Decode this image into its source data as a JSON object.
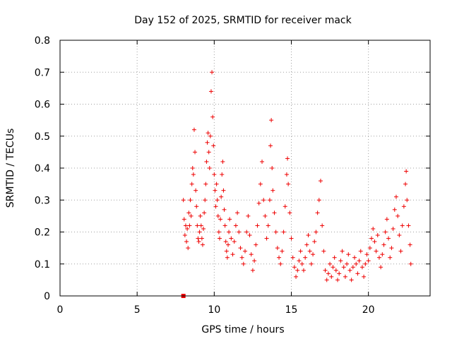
{
  "chart_data": {
    "type": "scatter",
    "title": "Day 152 of 2025, SRMTID for receiver mack",
    "xlabel": "GPS time / hours",
    "ylabel": "SRMTID / TECUs",
    "xlim": [
      0,
      24
    ],
    "ylim": [
      0,
      0.8
    ],
    "xticks": [
      0,
      5,
      10,
      15,
      20
    ],
    "yticks": [
      0,
      0.1,
      0.2,
      0.3,
      0.4,
      0.5,
      0.6,
      0.7,
      0.8
    ],
    "xtick_labels": [
      "0",
      "5",
      "10",
      "15",
      "20"
    ],
    "ytick_labels": [
      "0",
      "0.1",
      "0.2",
      "0.3",
      "0.4",
      "0.5",
      "0.6",
      "0.7",
      "0.8"
    ],
    "grid": true,
    "marker": "+",
    "marker_color": "#ee0000",
    "square_marker": {
      "x": 8.0,
      "y": 0.0
    },
    "series": [
      {
        "name": "SRMTID",
        "points": [
          [
            8.0,
            0.3
          ],
          [
            8.05,
            0.24
          ],
          [
            8.1,
            0.19
          ],
          [
            8.15,
            0.22
          ],
          [
            8.2,
            0.17
          ],
          [
            8.25,
            0.21
          ],
          [
            8.3,
            0.15
          ],
          [
            8.35,
            0.26
          ],
          [
            8.4,
            0.22
          ],
          [
            8.45,
            0.3
          ],
          [
            8.5,
            0.25
          ],
          [
            8.55,
            0.35
          ],
          [
            8.6,
            0.4
          ],
          [
            8.65,
            0.38
          ],
          [
            8.7,
            0.52
          ],
          [
            8.75,
            0.45
          ],
          [
            8.8,
            0.33
          ],
          [
            8.85,
            0.28
          ],
          [
            8.9,
            0.22
          ],
          [
            8.95,
            0.18
          ],
          [
            9.0,
            0.17
          ],
          [
            9.05,
            0.2
          ],
          [
            9.1,
            0.25
          ],
          [
            9.15,
            0.22
          ],
          [
            9.2,
            0.18
          ],
          [
            9.25,
            0.16
          ],
          [
            9.3,
            0.21
          ],
          [
            9.35,
            0.26
          ],
          [
            9.4,
            0.3
          ],
          [
            9.45,
            0.35
          ],
          [
            9.5,
            0.42
          ],
          [
            9.55,
            0.48
          ],
          [
            9.6,
            0.51
          ],
          [
            9.65,
            0.45
          ],
          [
            9.7,
            0.4
          ],
          [
            9.75,
            0.5
          ],
          [
            9.8,
            0.64
          ],
          [
            9.85,
            0.7
          ],
          [
            9.9,
            0.56
          ],
          [
            9.95,
            0.47
          ],
          [
            10.0,
            0.38
          ],
          [
            10.05,
            0.33
          ],
          [
            10.1,
            0.28
          ],
          [
            10.15,
            0.35
          ],
          [
            10.2,
            0.3
          ],
          [
            10.25,
            0.25
          ],
          [
            10.3,
            0.2
          ],
          [
            10.35,
            0.18
          ],
          [
            10.4,
            0.24
          ],
          [
            10.45,
            0.31
          ],
          [
            10.5,
            0.38
          ],
          [
            10.55,
            0.42
          ],
          [
            10.6,
            0.33
          ],
          [
            10.65,
            0.27
          ],
          [
            10.7,
            0.22
          ],
          [
            10.75,
            0.17
          ],
          [
            10.8,
            0.14
          ],
          [
            10.85,
            0.12
          ],
          [
            10.9,
            0.16
          ],
          [
            10.95,
            0.2
          ],
          [
            11.0,
            0.24
          ],
          [
            11.1,
            0.18
          ],
          [
            11.2,
            0.13
          ],
          [
            11.3,
            0.17
          ],
          [
            11.4,
            0.22
          ],
          [
            11.5,
            0.26
          ],
          [
            11.6,
            0.2
          ],
          [
            11.7,
            0.15
          ],
          [
            11.8,
            0.12
          ],
          [
            11.9,
            0.1
          ],
          [
            12.0,
            0.14
          ],
          [
            12.1,
            0.2
          ],
          [
            12.2,
            0.25
          ],
          [
            12.3,
            0.19
          ],
          [
            12.4,
            0.13
          ],
          [
            12.5,
            0.08
          ],
          [
            12.6,
            0.11
          ],
          [
            12.7,
            0.16
          ],
          [
            12.8,
            0.22
          ],
          [
            12.9,
            0.29
          ],
          [
            13.0,
            0.35
          ],
          [
            13.1,
            0.42
          ],
          [
            13.2,
            0.3
          ],
          [
            13.3,
            0.25
          ],
          [
            13.4,
            0.18
          ],
          [
            13.5,
            0.22
          ],
          [
            13.6,
            0.3
          ],
          [
            13.65,
            0.47
          ],
          [
            13.7,
            0.55
          ],
          [
            13.75,
            0.4
          ],
          [
            13.8,
            0.33
          ],
          [
            13.9,
            0.26
          ],
          [
            14.0,
            0.2
          ],
          [
            14.1,
            0.15
          ],
          [
            14.2,
            0.12
          ],
          [
            14.3,
            0.1
          ],
          [
            14.4,
            0.14
          ],
          [
            14.5,
            0.2
          ],
          [
            14.6,
            0.28
          ],
          [
            14.7,
            0.38
          ],
          [
            14.75,
            0.43
          ],
          [
            14.8,
            0.35
          ],
          [
            14.9,
            0.26
          ],
          [
            15.0,
            0.18
          ],
          [
            15.1,
            0.12
          ],
          [
            15.2,
            0.09
          ],
          [
            15.3,
            0.06
          ],
          [
            15.4,
            0.08
          ],
          [
            15.5,
            0.11
          ],
          [
            15.6,
            0.14
          ],
          [
            15.7,
            0.1
          ],
          [
            15.8,
            0.08
          ],
          [
            15.9,
            0.12
          ],
          [
            16.0,
            0.16
          ],
          [
            16.1,
            0.19
          ],
          [
            16.2,
            0.14
          ],
          [
            16.3,
            0.1
          ],
          [
            16.4,
            0.13
          ],
          [
            16.5,
            0.17
          ],
          [
            16.6,
            0.2
          ],
          [
            16.7,
            0.26
          ],
          [
            16.8,
            0.3
          ],
          [
            16.9,
            0.36
          ],
          [
            17.0,
            0.22
          ],
          [
            17.1,
            0.14
          ],
          [
            17.2,
            0.08
          ],
          [
            17.3,
            0.05
          ],
          [
            17.4,
            0.07
          ],
          [
            17.5,
            0.1
          ],
          [
            17.6,
            0.06
          ],
          [
            17.7,
            0.09
          ],
          [
            17.8,
            0.12
          ],
          [
            17.9,
            0.08
          ],
          [
            18.0,
            0.05
          ],
          [
            18.1,
            0.07
          ],
          [
            18.2,
            0.11
          ],
          [
            18.3,
            0.14
          ],
          [
            18.4,
            0.09
          ],
          [
            18.5,
            0.06
          ],
          [
            18.6,
            0.1
          ],
          [
            18.7,
            0.13
          ],
          [
            18.8,
            0.08
          ],
          [
            18.9,
            0.05
          ],
          [
            19.0,
            0.09
          ],
          [
            19.1,
            0.12
          ],
          [
            19.2,
            0.1
          ],
          [
            19.3,
            0.07
          ],
          [
            19.4,
            0.11
          ],
          [
            19.5,
            0.14
          ],
          [
            19.6,
            0.09
          ],
          [
            19.7,
            0.06
          ],
          [
            19.8,
            0.1
          ],
          [
            19.9,
            0.13
          ],
          [
            20.0,
            0.11
          ],
          [
            20.1,
            0.15
          ],
          [
            20.2,
            0.18
          ],
          [
            20.3,
            0.21
          ],
          [
            20.4,
            0.17
          ],
          [
            20.5,
            0.14
          ],
          [
            20.6,
            0.19
          ],
          [
            20.7,
            0.12
          ],
          [
            20.8,
            0.09
          ],
          [
            20.9,
            0.13
          ],
          [
            21.0,
            0.16
          ],
          [
            21.1,
            0.2
          ],
          [
            21.2,
            0.24
          ],
          [
            21.3,
            0.18
          ],
          [
            21.4,
            0.12
          ],
          [
            21.5,
            0.15
          ],
          [
            21.6,
            0.21
          ],
          [
            21.7,
            0.27
          ],
          [
            21.8,
            0.31
          ],
          [
            21.9,
            0.25
          ],
          [
            22.0,
            0.19
          ],
          [
            22.1,
            0.14
          ],
          [
            22.2,
            0.22
          ],
          [
            22.3,
            0.28
          ],
          [
            22.4,
            0.35
          ],
          [
            22.45,
            0.39
          ],
          [
            22.5,
            0.3
          ],
          [
            22.6,
            0.22
          ],
          [
            22.7,
            0.16
          ],
          [
            22.75,
            0.1
          ]
        ]
      }
    ]
  }
}
